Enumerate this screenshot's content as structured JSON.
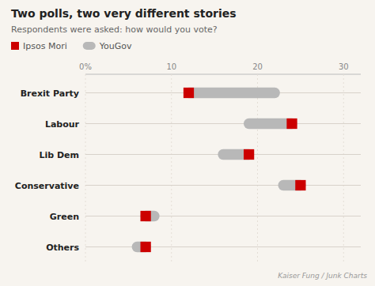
{
  "chart_data": {
    "type": "dumbbell",
    "orientation": "horizontal",
    "title": "Two polls, two very different stories",
    "subtitle": "Respondents were asked: how would you vote?",
    "annotations": [
      "Kaiser Fung / Junk Charts"
    ],
    "categories": [
      "Brexit Party",
      "Labour",
      "Lib Dem",
      "Conservative",
      "Green",
      "Others"
    ],
    "series": [
      {
        "name": "Ipsos Mori",
        "color": "#cc0000",
        "marker": "square",
        "values": [
          12,
          24,
          19,
          25,
          7,
          7
        ]
      },
      {
        "name": "YouGov",
        "color": "#b8b8b8",
        "marker": "pill",
        "values": [
          22,
          19,
          16,
          23,
          8,
          6
        ]
      }
    ],
    "xlim": [
      0,
      32
    ],
    "xticks": [
      {
        "value": 0,
        "label": "0%"
      },
      10,
      20,
      30
    ],
    "grid": true,
    "legend": "top"
  }
}
